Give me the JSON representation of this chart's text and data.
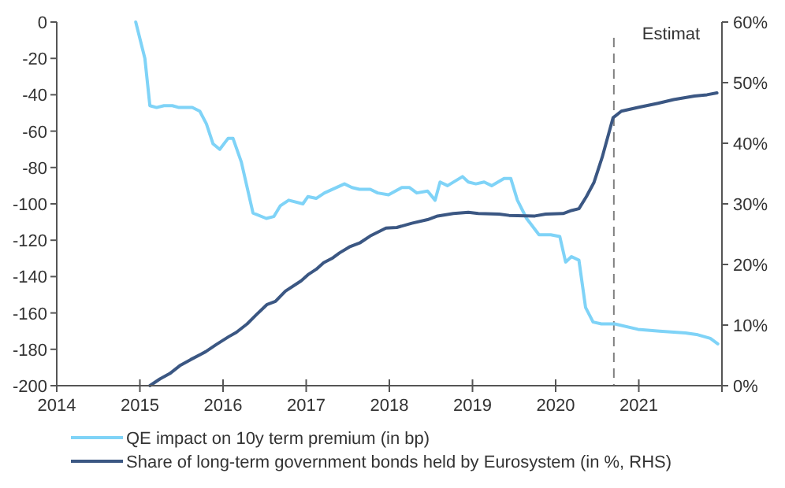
{
  "chart_data": {
    "type": "line",
    "xlim": [
      2014,
      2022
    ],
    "xticks": [
      2014,
      2015,
      2016,
      2017,
      2018,
      2019,
      2020,
      2021,
      {
        "value": 2022,
        "label": null
      }
    ],
    "ylim": [
      -200,
      0
    ],
    "yticks": [
      -200,
      -180,
      -160,
      -140,
      -120,
      -100,
      -80,
      -60,
      -40,
      -20,
      0
    ],
    "y2lim": [
      0,
      60
    ],
    "y2ticks": [
      {
        "value": 0,
        "label": "0%"
      },
      {
        "value": 10,
        "label": "10%"
      },
      {
        "value": 20,
        "label": "20%"
      },
      {
        "value": 30,
        "label": "30%"
      },
      {
        "value": 40,
        "label": "40%"
      },
      {
        "value": 50,
        "label": "50%"
      },
      {
        "value": 60,
        "label": "60%"
      }
    ],
    "grid": false,
    "legend": "bottom",
    "ref_lines": [
      {
        "axis": "x",
        "value": 2020.7,
        "label": "Estimat",
        "color": "#808080",
        "line_style": "dashed"
      }
    ],
    "series": [
      {
        "name": "QE impact on 10y term premium (in bp)",
        "color": "#7fd3f7",
        "x": [
          2014.95,
          2015.06,
          2015.12,
          2015.2,
          2015.29,
          2015.39,
          2015.47,
          2015.63,
          2015.72,
          2015.8,
          2015.88,
          2015.96,
          2016.06,
          2016.12,
          2016.22,
          2016.36,
          2016.52,
          2016.61,
          2016.69,
          2016.79,
          2016.96,
          2017.02,
          2017.12,
          2017.22,
          2017.46,
          2017.55,
          2017.64,
          2017.77,
          2017.86,
          2017.99,
          2018.15,
          2018.24,
          2018.33,
          2018.46,
          2018.55,
          2018.61,
          2018.7,
          2018.88,
          2018.95,
          2019.04,
          2019.14,
          2019.23,
          2019.38,
          2019.46,
          2019.54,
          2019.65,
          2019.8,
          2019.94,
          2020.05,
          2020.12,
          2020.19,
          2020.28,
          2020.36,
          2020.45,
          2020.55,
          2020.71,
          2020.99,
          2021.25,
          2021.56,
          2021.71,
          2021.86,
          2021.95
        ],
        "values": [
          0,
          -20,
          -46,
          -47,
          -46,
          -46,
          -47,
          -47,
          -49,
          -56,
          -67,
          -70,
          -64,
          -64,
          -77,
          -105,
          -108,
          -107,
          -101,
          -98,
          -100,
          -96,
          -97,
          -94,
          -89,
          -91,
          -92,
          -92,
          -94,
          -95,
          -91,
          -91,
          -94,
          -93,
          -98,
          -88,
          -90,
          -85,
          -88,
          -89,
          -88,
          -90,
          -86,
          -86,
          -98,
          -108,
          -117,
          -117,
          -118,
          -132,
          -129,
          -131,
          -157,
          -165,
          -166,
          -166,
          -169,
          -170,
          -171,
          -172,
          -174,
          -177
        ]
      },
      {
        "name": "Share of long-term government bonds held by Eurosystem (in %, RHS)",
        "color": "#3b5783",
        "axis": "y2",
        "x": [
          2015.12,
          2015.24,
          2015.36,
          2015.48,
          2015.61,
          2015.79,
          2015.92,
          2016.07,
          2016.16,
          2016.29,
          2016.4,
          2016.53,
          2016.63,
          2016.75,
          2016.94,
          2017.03,
          2017.12,
          2017.21,
          2017.31,
          2017.4,
          2017.52,
          2017.65,
          2017.77,
          2017.96,
          2018.09,
          2018.27,
          2018.46,
          2018.58,
          2018.77,
          2018.95,
          2019.07,
          2019.32,
          2019.44,
          2019.75,
          2019.88,
          2020.09,
          2020.19,
          2020.28,
          2020.37,
          2020.46,
          2020.56,
          2020.69,
          2020.79,
          2020.99,
          2021.23,
          2021.42,
          2021.67,
          2021.82,
          2021.94
        ],
        "values": [
          0,
          1.1,
          2.0,
          3.3,
          4.3,
          5.6,
          6.8,
          8.1,
          8.8,
          10.2,
          11.7,
          13.4,
          13.9,
          15.6,
          17.3,
          18.4,
          19.2,
          20.3,
          21.0,
          21.9,
          22.9,
          23.6,
          24.7,
          26.0,
          26.1,
          26.8,
          27.4,
          28.0,
          28.4,
          28.6,
          28.4,
          28.3,
          28.1,
          28.0,
          28.3,
          28.4,
          28.9,
          29.2,
          31.2,
          33.5,
          37.7,
          44.2,
          45.3,
          45.9,
          46.6,
          47.2,
          47.8,
          48.0,
          48.3
        ]
      }
    ]
  }
}
